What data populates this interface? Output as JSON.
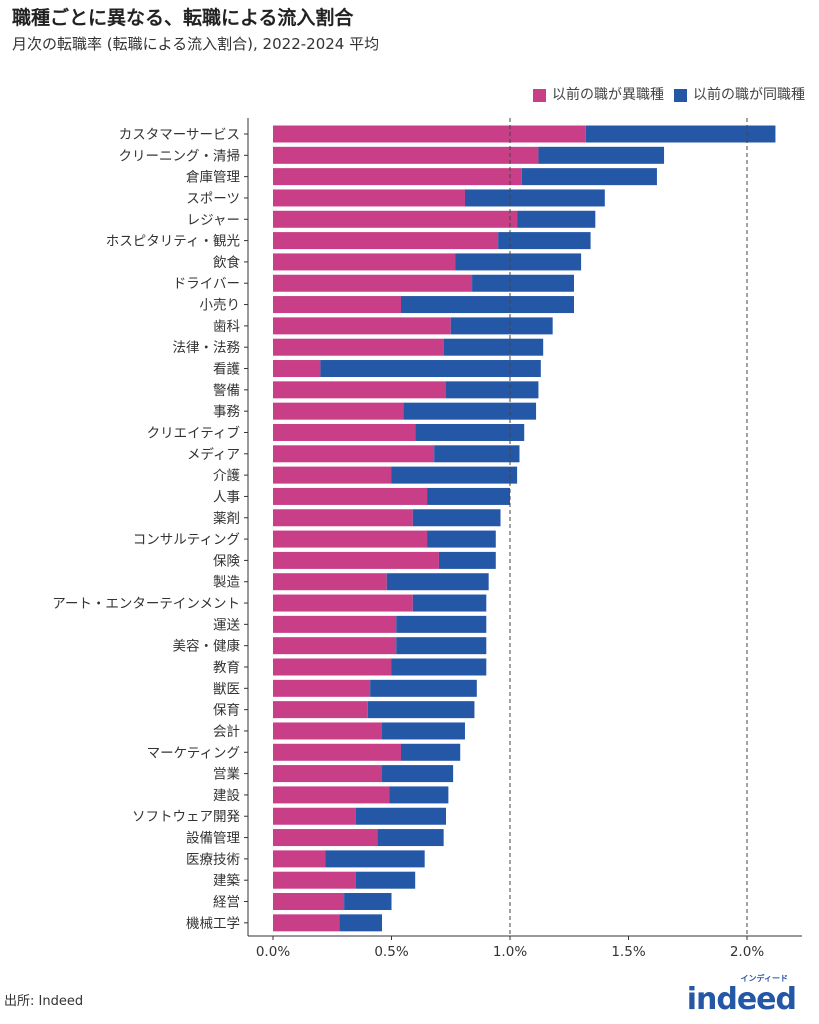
{
  "title": "職種ごとに異なる、転職による流入割合",
  "subtitle": "月次の転職率 (転職による流入割合), 2022-2024 平均",
  "source": "出所: Indeed",
  "logo": {
    "text": "indeed",
    "jp": "インディード"
  },
  "colors": {
    "different": "#c83e87",
    "same": "#2557a7"
  },
  "chart_data": {
    "type": "bar",
    "orientation": "horizontal",
    "stacked": true,
    "title": "職種ごとに異なる、転職による流入割合",
    "subtitle": "月次の転職率 (転職による流入割合), 2022-2024 平均",
    "xlim": [
      0,
      2.2
    ],
    "x_ticks": [
      0,
      0.5,
      1.0,
      1.5,
      2.0
    ],
    "x_tick_labels": [
      "0.0%",
      "0.5%",
      "1.0%",
      "1.5%",
      "2.0%"
    ],
    "reference_lines": [
      1.0,
      2.0
    ],
    "legend_position": "top-right",
    "categories": [
      "カスタマーサービス",
      "クリーニング・清掃",
      "倉庫管理",
      "スポーツ",
      "レジャー",
      "ホスピタリティ・観光",
      "飲食",
      "ドライバー",
      "小売り",
      "歯科",
      "法律・法務",
      "看護",
      "警備",
      "事務",
      "クリエイティブ",
      "メディア",
      "介護",
      "人事",
      "薬剤",
      "コンサルティング",
      "保険",
      "製造",
      "アート・エンターテインメント",
      "運送",
      "美容・健康",
      "教育",
      "獣医",
      "保育",
      "会計",
      "マーケティング",
      "営業",
      "建設",
      "ソフトウェア開発",
      "設備管理",
      "医療技術",
      "建築",
      "経営",
      "機械工学"
    ],
    "series": [
      {
        "name": "以前の職が異職種",
        "values": [
          1.32,
          1.12,
          1.05,
          0.81,
          1.03,
          0.95,
          0.77,
          0.84,
          0.54,
          0.75,
          0.72,
          0.2,
          0.73,
          0.55,
          0.6,
          0.68,
          0.5,
          0.65,
          0.59,
          0.65,
          0.7,
          0.48,
          0.59,
          0.52,
          0.52,
          0.5,
          0.41,
          0.4,
          0.46,
          0.54,
          0.46,
          0.49,
          0.35,
          0.44,
          0.22,
          0.35,
          0.3,
          0.28
        ]
      },
      {
        "name": "以前の職が同職種",
        "values": [
          0.8,
          0.53,
          0.57,
          0.59,
          0.33,
          0.39,
          0.53,
          0.43,
          0.73,
          0.43,
          0.42,
          0.93,
          0.39,
          0.56,
          0.46,
          0.36,
          0.53,
          0.35,
          0.37,
          0.29,
          0.24,
          0.43,
          0.31,
          0.38,
          0.38,
          0.4,
          0.45,
          0.45,
          0.35,
          0.25,
          0.3,
          0.25,
          0.38,
          0.28,
          0.42,
          0.25,
          0.2,
          0.18
        ]
      }
    ]
  }
}
